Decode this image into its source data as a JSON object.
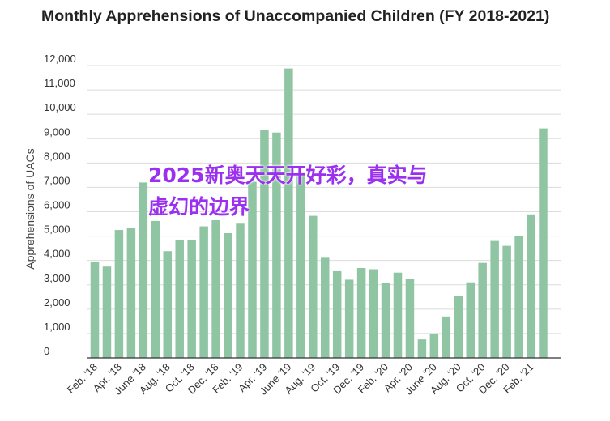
{
  "chart_data": {
    "type": "bar",
    "title": "Monthly Apprehensions of Unaccompanied Children (FY 2018-2021)",
    "ylabel": "Apprehensions of UACs",
    "xlabel": "",
    "ylim": [
      0,
      12000
    ],
    "yticks": [
      0,
      1000,
      2000,
      3000,
      4000,
      5000,
      6000,
      7000,
      8000,
      9000,
      10000,
      11000,
      12000
    ],
    "ytick_labels": [
      "0",
      "1,000",
      "2,000",
      "3,000",
      "4,000",
      "5,000",
      "6,000",
      "7,000",
      "8,000",
      "9,000",
      "10,000",
      "11,000",
      "12,000"
    ],
    "grid": true,
    "bar_color": "#8fc5a3",
    "tick_labels": [
      {
        "index": 0,
        "label": "Feb. '18"
      },
      {
        "index": 2,
        "label": "Apr. '18"
      },
      {
        "index": 4,
        "label": "June '18"
      },
      {
        "index": 6,
        "label": "Aug. '18"
      },
      {
        "index": 8,
        "label": "Oct. '18"
      },
      {
        "index": 10,
        "label": "Dec. '18"
      },
      {
        "index": 12,
        "label": "Feb. '19"
      },
      {
        "index": 14,
        "label": "Apr. '19"
      },
      {
        "index": 16,
        "label": "June '19"
      },
      {
        "index": 18,
        "label": "Aug. '19"
      },
      {
        "index": 20,
        "label": "Oct. '19"
      },
      {
        "index": 22,
        "label": "Dec. '19"
      },
      {
        "index": 24,
        "label": "Feb. '20"
      },
      {
        "index": 26,
        "label": "Apr. '20"
      },
      {
        "index": 28,
        "label": "June '20"
      },
      {
        "index": 30,
        "label": "Aug. '20"
      },
      {
        "index": 32,
        "label": "Oct. '20"
      },
      {
        "index": 34,
        "label": "Dec. '20"
      },
      {
        "index": 36,
        "label": "Feb. '21"
      }
    ],
    "values": [
      3950,
      3750,
      5250,
      5330,
      7200,
      5620,
      4380,
      4850,
      4820,
      5400,
      5650,
      5120,
      5510,
      7230,
      9350,
      9250,
      11880,
      7600,
      5830,
      4110,
      3560,
      3210,
      3690,
      3640,
      3080,
      3500,
      3230,
      760,
      1000,
      1700,
      2530,
      3100,
      3900,
      4800,
      4600,
      5020,
      5890,
      9420
    ]
  },
  "overlay_text": {
    "line1": "2025新奥天天开好彩，真实与",
    "line2": "虚幻的边界"
  }
}
